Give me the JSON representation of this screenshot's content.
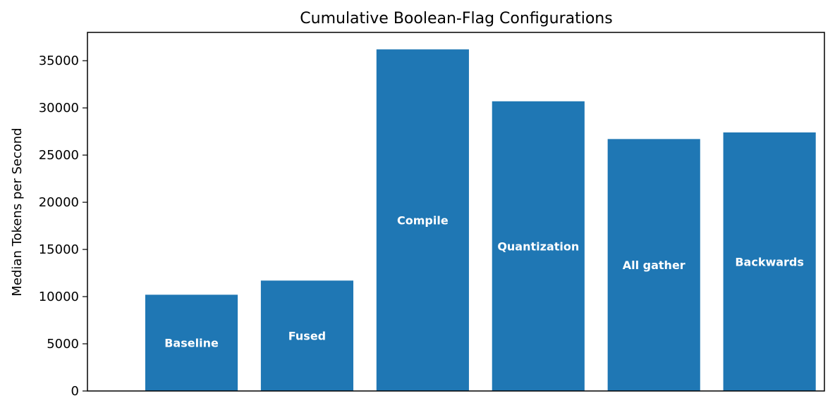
{
  "chart_data": {
    "type": "bar",
    "title": "Cumulative Boolean-Flag Configurations",
    "xlabel": "",
    "ylabel": "Median Tokens per Second",
    "ylim": [
      0,
      38000
    ],
    "yticks": [
      0,
      5000,
      10000,
      15000,
      20000,
      25000,
      30000,
      35000
    ],
    "grid": false,
    "bar_color": "#1f77b4",
    "label_color": "#ffffff",
    "categories": [
      "Baseline",
      "Fused",
      "Compile",
      "Quantization",
      "All gather",
      "Backwards"
    ],
    "values": [
      10200,
      11700,
      36200,
      30700,
      26700,
      27400
    ]
  }
}
